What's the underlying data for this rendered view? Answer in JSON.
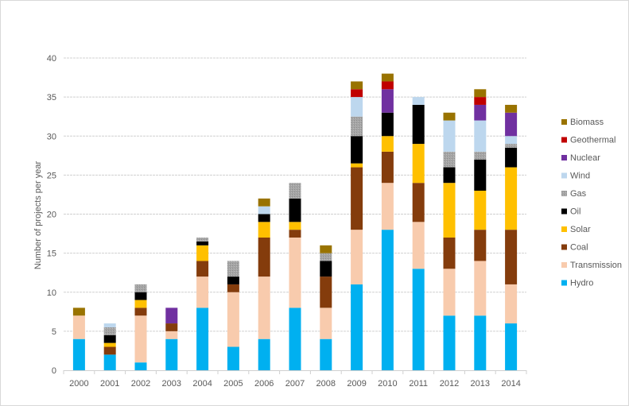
{
  "chart_data": {
    "type": "bar",
    "stacked": true,
    "title": "",
    "xlabel": "",
    "ylabel": "Number of projects per year",
    "ylim": [
      0,
      40
    ],
    "yticks": [
      0,
      5,
      10,
      15,
      20,
      25,
      30,
      35,
      40
    ],
    "grid": true,
    "legend_position": "right",
    "categories": [
      "2000",
      "2001",
      "2002",
      "2003",
      "2004",
      "2005",
      "2006",
      "2007",
      "2008",
      "2009",
      "2010",
      "2011",
      "2012",
      "2013",
      "2014"
    ],
    "series": [
      {
        "name": "Hydro",
        "color": "#00b0f0",
        "values": [
          4,
          2,
          1,
          4,
          8,
          3,
          4,
          8,
          4,
          11,
          18,
          13,
          7,
          7,
          6
        ]
      },
      {
        "name": "Transmission",
        "color": "#f8cbad",
        "values": [
          3,
          0,
          6,
          1,
          4,
          7,
          8,
          9,
          4,
          7,
          6,
          6,
          6,
          7,
          5
        ]
      },
      {
        "name": "Coal",
        "color": "#843c0c",
        "values": [
          0,
          1,
          1,
          1,
          2,
          1,
          5,
          1,
          4,
          8,
          4,
          5,
          4,
          4,
          7
        ]
      },
      {
        "name": "Solar",
        "color": "#ffc000",
        "values": [
          0,
          0.5,
          1,
          0,
          2,
          0,
          2,
          1,
          0,
          0.5,
          2,
          5,
          7,
          5,
          8
        ]
      },
      {
        "name": "Oil",
        "color": "#000000",
        "values": [
          0,
          1,
          1,
          0,
          0.5,
          1,
          1,
          3,
          2,
          3.5,
          3,
          5,
          2,
          4,
          2.5
        ]
      },
      {
        "name": "Gas",
        "color": "#a5a5a5",
        "values": [
          0,
          1,
          1,
          0,
          0.5,
          2,
          0,
          2,
          1,
          2.5,
          0,
          0,
          2,
          1,
          0.5
        ]
      },
      {
        "name": "Wind",
        "color": "#bdd7ee",
        "values": [
          0,
          0.5,
          0,
          0,
          0,
          0,
          1,
          0,
          0,
          2.5,
          0,
          1,
          4,
          4,
          1
        ]
      },
      {
        "name": "Nuclear",
        "color": "#7030a0",
        "values": [
          0,
          0,
          0,
          2,
          0,
          0,
          0,
          0,
          0,
          0,
          3,
          0,
          0,
          2,
          3
        ]
      },
      {
        "name": "Geothermal",
        "color": "#c00000",
        "values": [
          0,
          0,
          0,
          0,
          0,
          0,
          0,
          0,
          0,
          1,
          1,
          0,
          0,
          1,
          0
        ]
      },
      {
        "name": "Biomass",
        "color": "#997300",
        "values": [
          1,
          0,
          0,
          0,
          0,
          0,
          1,
          0,
          1,
          1,
          1,
          0,
          1,
          1,
          1
        ]
      }
    ]
  }
}
